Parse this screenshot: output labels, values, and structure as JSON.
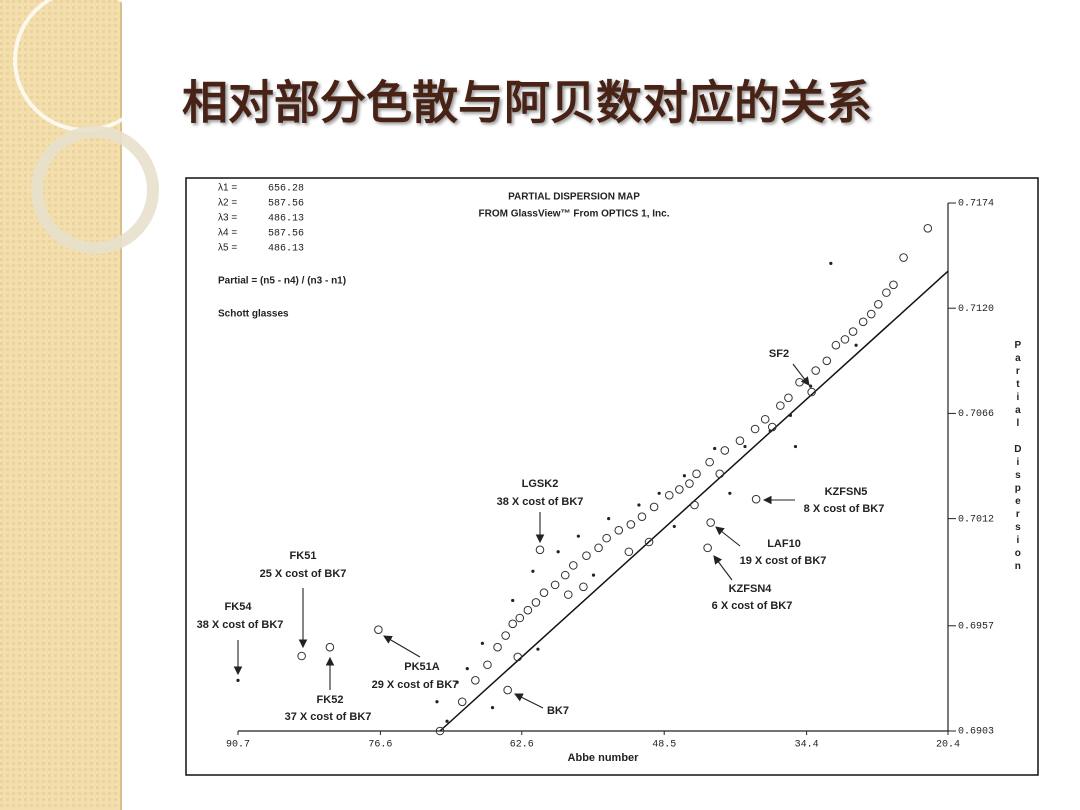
{
  "heading": "相对部分色散与阿贝数对应的关系",
  "chart_data": {
    "type": "scatter",
    "title": "PARTIAL DISPERSION MAP",
    "subtitle": "FROM GlassView™ From OPTICS 1, Inc.",
    "wavelengths": [
      {
        "label": "λ1 =",
        "value": 656.28
      },
      {
        "label": "λ2 =",
        "value": 587.56
      },
      {
        "label": "λ3 =",
        "value": 486.13
      },
      {
        "label": "λ4 =",
        "value": 587.56
      },
      {
        "label": "λ5 =",
        "value": 486.13
      }
    ],
    "formula": "Partial = (n5 - n4) / (n3 - n1)",
    "note": "Schott glasses",
    "x_label": "Abbe number",
    "y_label": "Partial Dispersion",
    "xlim": [
      90.7,
      20.4
    ],
    "xticks": [
      90.7,
      76.6,
      62.6,
      48.5,
      34.4,
      20.4
    ],
    "ylim": [
      0.6903,
      0.7174
    ],
    "yticks": [
      0.6903,
      0.6957,
      0.7012,
      0.7066,
      {
        "value": 0.712,
        "label": "0.7120"
      },
      0.7174
    ],
    "fit_line": {
      "x": [
        70.7,
        20.4
      ],
      "y": [
        0.6903,
        0.7139
      ]
    },
    "series": [
      {
        "marker": "circle",
        "color": "#333333",
        "x": [
          22.4,
          24.8,
          25.8,
          26.5,
          27.3,
          28.0,
          28.8,
          29.8,
          30.6,
          31.5,
          32.4,
          33.5,
          35.1,
          36.2,
          37.0,
          38.5,
          39.5,
          41.0,
          42.5,
          44.0,
          45.3,
          46.0,
          47.0,
          48.0,
          49.5,
          50.7,
          51.8,
          53.0,
          54.2,
          55.0,
          56.2,
          57.5,
          58.3,
          59.3,
          60.4,
          61.2,
          62.0,
          62.8,
          63.5,
          64.2,
          65.0,
          66.0,
          67.2,
          68.5,
          63.0,
          58.0,
          56.5,
          52.0,
          50.0,
          45.5,
          43.0,
          37.8,
          70.7,
          84.4,
          81.6,
          76.8,
          60.8,
          39.4,
          43.9,
          44.2,
          64.0,
          33.9
        ],
        "y": [
          0.7161,
          0.7146,
          0.7132,
          0.7128,
          0.7122,
          0.7117,
          0.7113,
          0.7108,
          0.7104,
          0.7101,
          0.7093,
          0.7088,
          0.7082,
          0.7074,
          0.707,
          0.7063,
          0.7058,
          0.7052,
          0.7047,
          0.7041,
          0.7035,
          0.703,
          0.7027,
          0.7024,
          0.7018,
          0.7013,
          0.7009,
          0.7006,
          0.7002,
          0.6997,
          0.6993,
          0.6988,
          0.6983,
          0.6978,
          0.6974,
          0.6969,
          0.6965,
          0.6961,
          0.6958,
          0.6952,
          0.6946,
          0.6937,
          0.6929,
          0.6918,
          0.6941,
          0.6973,
          0.6977,
          0.6995,
          0.7,
          0.7019,
          0.7035,
          0.7059,
          0.6903,
          0.69415,
          0.6946,
          0.6955,
          0.6996,
          0.7022,
          0.701,
          0.6997,
          0.6924,
          0.7077
        ]
      },
      {
        "marker": "dot",
        "color": "#222222",
        "x": [
          32.0,
          29.5,
          34.0,
          36.0,
          38.0,
          40.5,
          43.5,
          46.5,
          49.0,
          51.0,
          54.0,
          57.0,
          59.0,
          61.5,
          63.5,
          66.5,
          68.0,
          69.0,
          71.0,
          70.0,
          65.5,
          61.0,
          55.5,
          47.5,
          35.5,
          42.0,
          90.7
        ],
        "y": [
          0.7143,
          0.7101,
          0.708,
          0.7065,
          0.7057,
          0.7049,
          0.7048,
          0.7034,
          0.7025,
          0.7019,
          0.7012,
          0.7003,
          0.6995,
          0.6985,
          0.697,
          0.6948,
          0.6935,
          0.6928,
          0.6918,
          0.6908,
          0.6915,
          0.6945,
          0.6983,
          0.7008,
          0.7049,
          0.7025,
          0.6929
        ]
      }
    ],
    "annotations": [
      {
        "name": "FK54",
        "cost": "38 X cost of BK7"
      },
      {
        "name": "FK51",
        "cost": "25 X cost of BK7"
      },
      {
        "name": "FK52",
        "cost": "37 X cost of BK7"
      },
      {
        "name": "PK51A",
        "cost": "29 X cost of BK7"
      },
      {
        "name": "LGSK2",
        "cost": "38 X cost of BK7"
      },
      {
        "name": "KZFSN5",
        "cost": "8 X cost of BK7"
      },
      {
        "name": "LAF10",
        "cost": "19 X cost of BK7"
      },
      {
        "name": "KZFSN4",
        "cost": "6 X cost of BK7"
      },
      {
        "name": "BK7"
      },
      {
        "name": "SF2"
      }
    ]
  }
}
